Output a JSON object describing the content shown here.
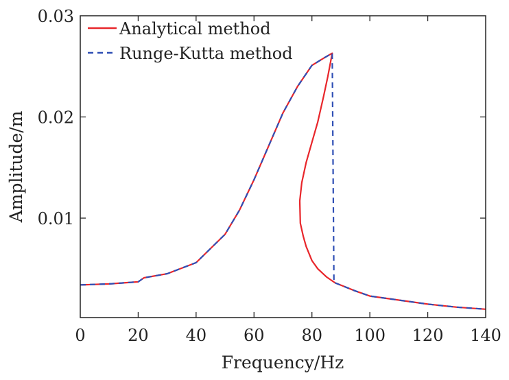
{
  "chart_data": {
    "type": "line",
    "title": "",
    "xlabel": "Frequency/Hz",
    "ylabel": "Amplitude/m",
    "xlim": [
      0,
      140
    ],
    "ylim": [
      0,
      0.03
    ],
    "xticks": [
      "0",
      "20",
      "40",
      "60",
      "80",
      "100",
      "120",
      "140"
    ],
    "xtick_values": [
      0,
      20,
      40,
      60,
      80,
      100,
      120,
      140
    ],
    "yticks": [
      "0.01",
      "0.02",
      "0.03"
    ],
    "ytick_values": [
      0.01,
      0.02,
      0.03
    ],
    "grid": false,
    "legend_position": "top-left",
    "series": [
      {
        "name": "Analytical method",
        "color": "#e8262b",
        "style": "solid",
        "x": [
          0,
          10,
          20,
          21,
          22,
          30,
          40,
          50,
          55,
          60,
          65,
          70,
          75,
          80,
          84,
          87,
          85.5,
          84,
          82,
          80,
          78,
          76.5,
          75.8,
          76,
          77,
          78,
          80,
          82,
          85,
          88,
          95,
          100,
          110,
          120,
          130,
          140
        ],
        "y": [
          0.0034,
          0.0035,
          0.0037,
          0.0039,
          0.0041,
          0.0045,
          0.0056,
          0.0084,
          0.0108,
          0.0138,
          0.0171,
          0.0204,
          0.023,
          0.0251,
          0.0258,
          0.0263,
          0.024,
          0.022,
          0.0195,
          0.0175,
          0.0155,
          0.0135,
          0.0117,
          0.0095,
          0.0082,
          0.0072,
          0.0058,
          0.005,
          0.0042,
          0.0036,
          0.0028,
          0.0023,
          0.0019,
          0.0015,
          0.0012,
          0.001
        ]
      },
      {
        "name": "Runge-Kutta method",
        "color": "#2f4fb5",
        "style": "dashed",
        "x": [
          0,
          10,
          20,
          21,
          22,
          30,
          40,
          50,
          55,
          60,
          65,
          70,
          75,
          80,
          84,
          87,
          87.6,
          88,
          95,
          100,
          110,
          120,
          130,
          140
        ],
        "y": [
          0.0034,
          0.0035,
          0.0037,
          0.0039,
          0.0041,
          0.0045,
          0.0056,
          0.0084,
          0.0108,
          0.0138,
          0.0171,
          0.0204,
          0.023,
          0.0251,
          0.0258,
          0.0263,
          0.0036,
          0.0036,
          0.0028,
          0.0023,
          0.0019,
          0.0015,
          0.0012,
          0.001
        ]
      }
    ]
  }
}
